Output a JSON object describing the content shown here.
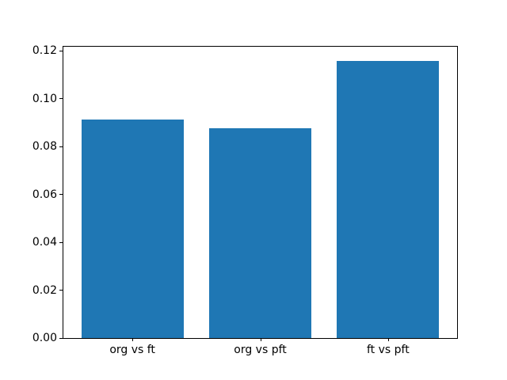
{
  "figure": {
    "background_color": "#ffffff"
  },
  "chart_data": {
    "type": "bar",
    "title": "",
    "xlabel": "",
    "ylabel": "",
    "categories": [
      "org vs ft",
      "org vs pft",
      "ft vs pft"
    ],
    "values": [
      0.0913,
      0.0876,
      0.1159
    ],
    "ylim": [
      0,
      0.1218
    ],
    "ytick_values": [
      0.0,
      0.02,
      0.04,
      0.06,
      0.08,
      0.1,
      0.12
    ],
    "ytick_labels": [
      "0.00",
      "0.02",
      "0.04",
      "0.06",
      "0.08",
      "0.10",
      "0.12"
    ],
    "bar_color": "#1f77b4",
    "spine_color": "#000000",
    "bar_width_fraction": 0.8,
    "grid": false,
    "legend_visible": false
  }
}
